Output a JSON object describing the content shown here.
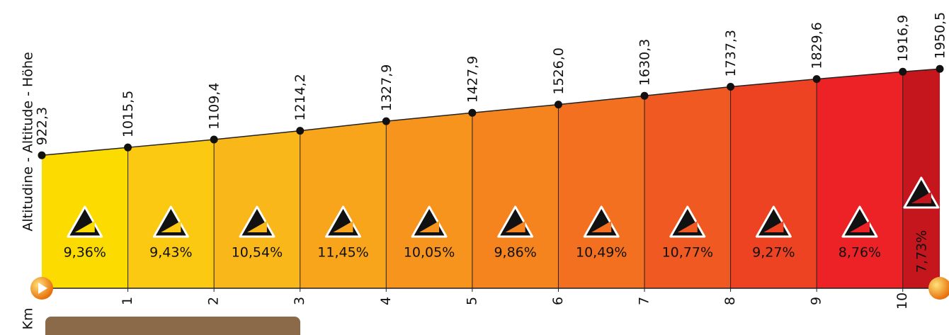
{
  "chart_data": {
    "type": "profile",
    "y_label": "Altitudine - Altitude - Höhe",
    "x_label": "Km",
    "x": [
      0,
      1,
      2,
      3,
      4,
      5,
      6,
      7,
      8,
      9,
      10,
      10.43
    ],
    "series": [
      {
        "values": [
          922.3,
          1015.5,
          1109.4,
          1214.2,
          1327.9,
          1427.9,
          1526.0,
          1630.3,
          1737.3,
          1829.6,
          1916.9,
          1950.5
        ],
        "value_labels": [
          "922,3",
          "1015,5",
          "1109,4",
          "1214,2",
          "1327,9",
          "1427,9",
          "1526,0",
          "1630,3",
          "1737,3",
          "1829,6",
          "1916,9",
          "1950,5"
        ]
      }
    ],
    "gradients": {
      "values": [
        9.36,
        9.43,
        10.54,
        11.45,
        10.05,
        9.86,
        10.49,
        10.77,
        9.27,
        8.76,
        7.73
      ],
      "value_labels": [
        "9,36%",
        "9,43%",
        "10,54%",
        "11,45%",
        "10,05%",
        "9,86%",
        "10,49%",
        "10,77%",
        "9,27%",
        "8,76%",
        "7,73%"
      ]
    },
    "colors": [
      "#fcdc00",
      "#fbc812",
      "#fab719",
      "#f9a51c",
      "#f7941d",
      "#f5841f",
      "#f37021",
      "#f05a22",
      "#ee4323",
      "#ec2227",
      "#c4161c"
    ],
    "xlim": [
      0,
      10.43
    ],
    "ylim": [
      -660,
      2770
    ],
    "xticks": [
      1,
      2,
      3,
      4,
      5,
      6,
      7,
      8,
      9,
      10
    ]
  }
}
